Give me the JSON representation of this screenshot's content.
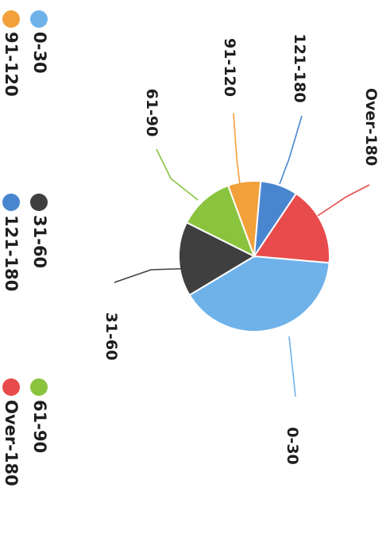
{
  "chart_data": {
    "type": "pie",
    "title": "",
    "categories": [
      "0-30",
      "31-60",
      "61-90",
      "91-120",
      "121-180",
      "Over-180"
    ],
    "values": [
      40,
      16,
      12,
      7,
      8,
      17
    ],
    "colors": [
      "#6fb2ea",
      "#3f3f3f",
      "#8ac43f",
      "#f2a03a",
      "#4a86cf",
      "#e84b4b"
    ],
    "data_labels": [
      "0-30",
      "31-60",
      "61-90",
      "91-120",
      "121-180",
      "Over-180"
    ],
    "legend": {
      "placement": "left",
      "entries": [
        "0-30",
        "31-60",
        "61-90",
        "91-120",
        "121-180",
        "Over-180"
      ]
    }
  }
}
